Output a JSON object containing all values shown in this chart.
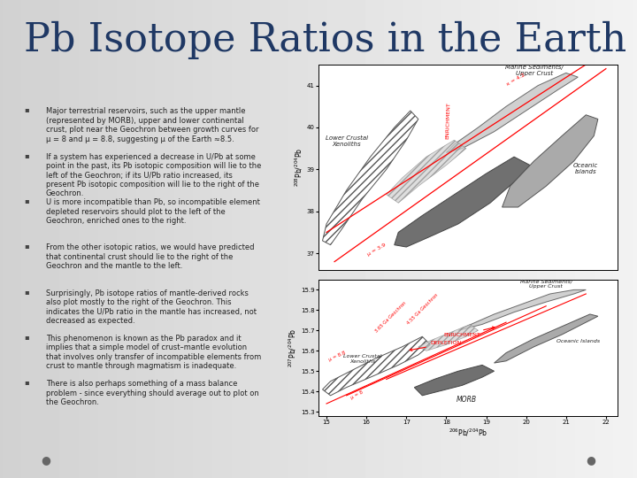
{
  "title": "Pb Isotope Ratios in the Earth",
  "title_color": "#1f3864",
  "bullet_points": [
    "Major terrestrial reservoirs, such as the upper mantle\n(represented by MORB), upper and lower continental\ncrust, plot near the Geochron between growth curves for\nμ = 8 and μ = 8.8, suggesting μ of the Earth ≈8.5.",
    "If a system has experienced a decrease in U/Pb at some\npoint in the past, its Pb isotopic composition will lie to the\nleft of the Geochron; if its U/Pb ratio increased, its\npresent Pb isotopic composition will lie to the right of the\nGeochron.",
    "U is more incompatible than Pb, so incompatible element\ndepleted reservoirs should plot to the left of the\nGeochron, enriched ones to the right.",
    "From the other isotopic ratios, we would have predicted\nthat continental crust should lie to the right of the\nGeochron and the mantle to the left.",
    "Surprisingly, Pb isotope ratios of mantle-derived rocks\nalso plot mostly to the right of the Geochron. This\nindicates the U/Pb ratio in the mantle has increased, not\ndecreased as expected.",
    "This phenomenon is known as the Pb paradox and it\nimplies that a simple model of crust–mantle evolution\nthat involves only transfer of incompatible elements from\ncrust to mantle through magmatism is inadequate.",
    "There is also perhaps something of a mass balance\nproblem - since everything should average out to plot on\nthe Geochron."
  ],
  "text_color": "#222222",
  "bullet_color": "#444444",
  "dot_color": "#666666",
  "font_size_bullet": 6.0,
  "font_size_title": 32
}
